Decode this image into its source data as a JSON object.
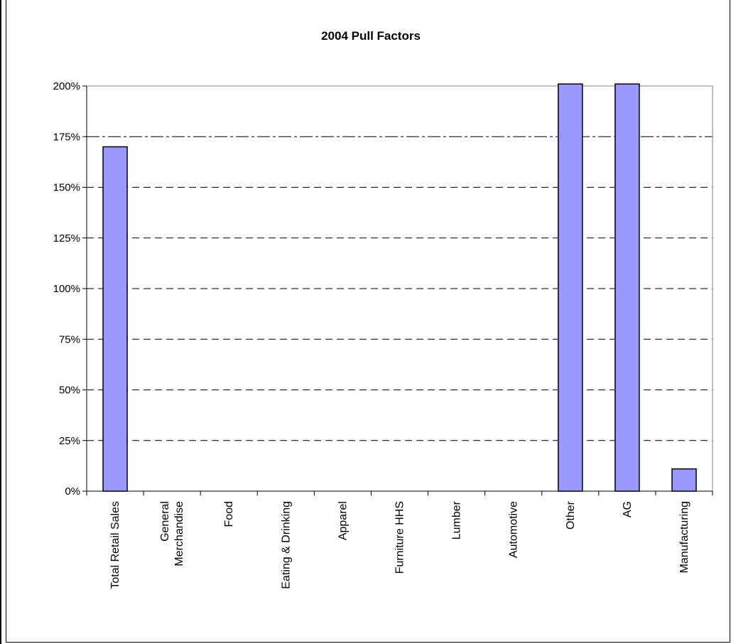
{
  "chart_data": {
    "type": "bar",
    "title": "2004 Pull Factors",
    "xlabel": "",
    "ylabel": "",
    "categories": [
      [
        "Total Retail Sales"
      ],
      [
        "General",
        "Merchandise"
      ],
      [
        "Food"
      ],
      [
        "Eating & Drinking"
      ],
      [
        "Apparel"
      ],
      [
        "Furniture HHS"
      ],
      [
        "Lumber"
      ],
      [
        "Automotive"
      ],
      [
        "Other"
      ],
      [
        "AG"
      ],
      [
        "Manufacturing"
      ]
    ],
    "values": [
      170,
      0,
      0,
      0,
      0,
      0,
      0,
      0,
      210,
      210,
      11
    ],
    "ylim": [
      0,
      200
    ],
    "yticks": [
      0,
      25,
      50,
      75,
      100,
      125,
      150,
      175,
      200
    ],
    "ytick_labels": [
      "0%",
      "25%",
      "50%",
      "75%",
      "100%",
      "125%",
      "150%",
      "175%",
      "200%"
    ],
    "grid": true,
    "legend": "none",
    "bar_color": "#9999ff",
    "bar_outline": "#000000"
  }
}
